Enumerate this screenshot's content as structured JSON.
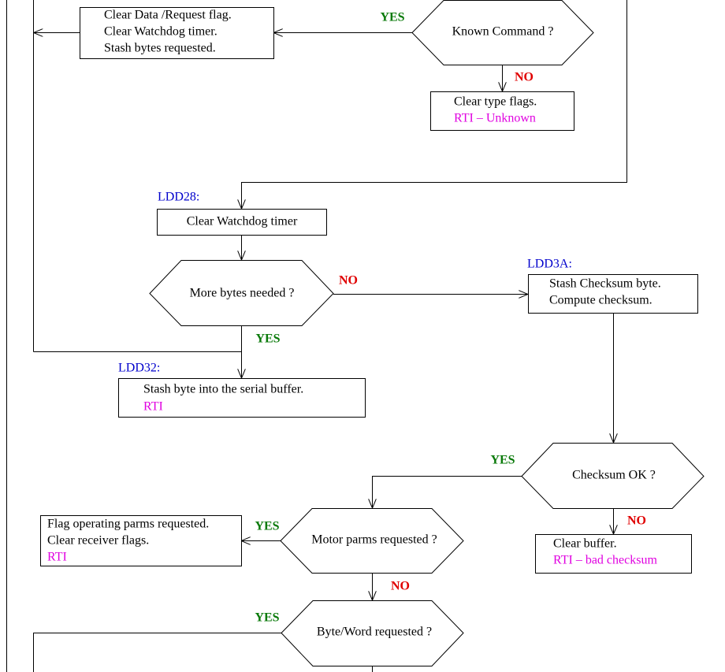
{
  "boxes": [
    {
      "lines": [
        "Clear Data /Request flag.",
        "Clear Watchdog timer.",
        "Stash bytes requested."
      ]
    },
    {
      "lines": [
        "Clear type flags.",
        "RTI – Unknown"
      ]
    },
    {
      "lines": [
        "Clear Watchdog timer"
      ]
    },
    {
      "lines": [
        "Stash Checksum byte.",
        "Compute checksum."
      ]
    },
    {
      "lines": [
        "Stash byte into the serial buffer.",
        "RTI"
      ]
    },
    {
      "lines": [
        "Clear buffer.",
        "RTI – bad checksum"
      ]
    },
    {
      "lines": [
        "Flag operating parms requested.",
        "Clear receiver flags.",
        "RTI"
      ]
    }
  ],
  "decisions": [
    {
      "label": "Known Command ?",
      "yes": "YES",
      "no": "NO"
    },
    {
      "label": "More bytes needed ?",
      "yes": "YES",
      "no": "NO"
    },
    {
      "label": "Checksum OK ?",
      "yes": "YES",
      "no": "NO"
    },
    {
      "label": "Motor parms requested ?",
      "yes": "YES",
      "no": "NO"
    },
    {
      "label": "Byte/Word requested ?",
      "yes": "YES"
    }
  ],
  "addresses": [
    "LDD28:",
    "LDD3A:",
    "LDD32:"
  ]
}
